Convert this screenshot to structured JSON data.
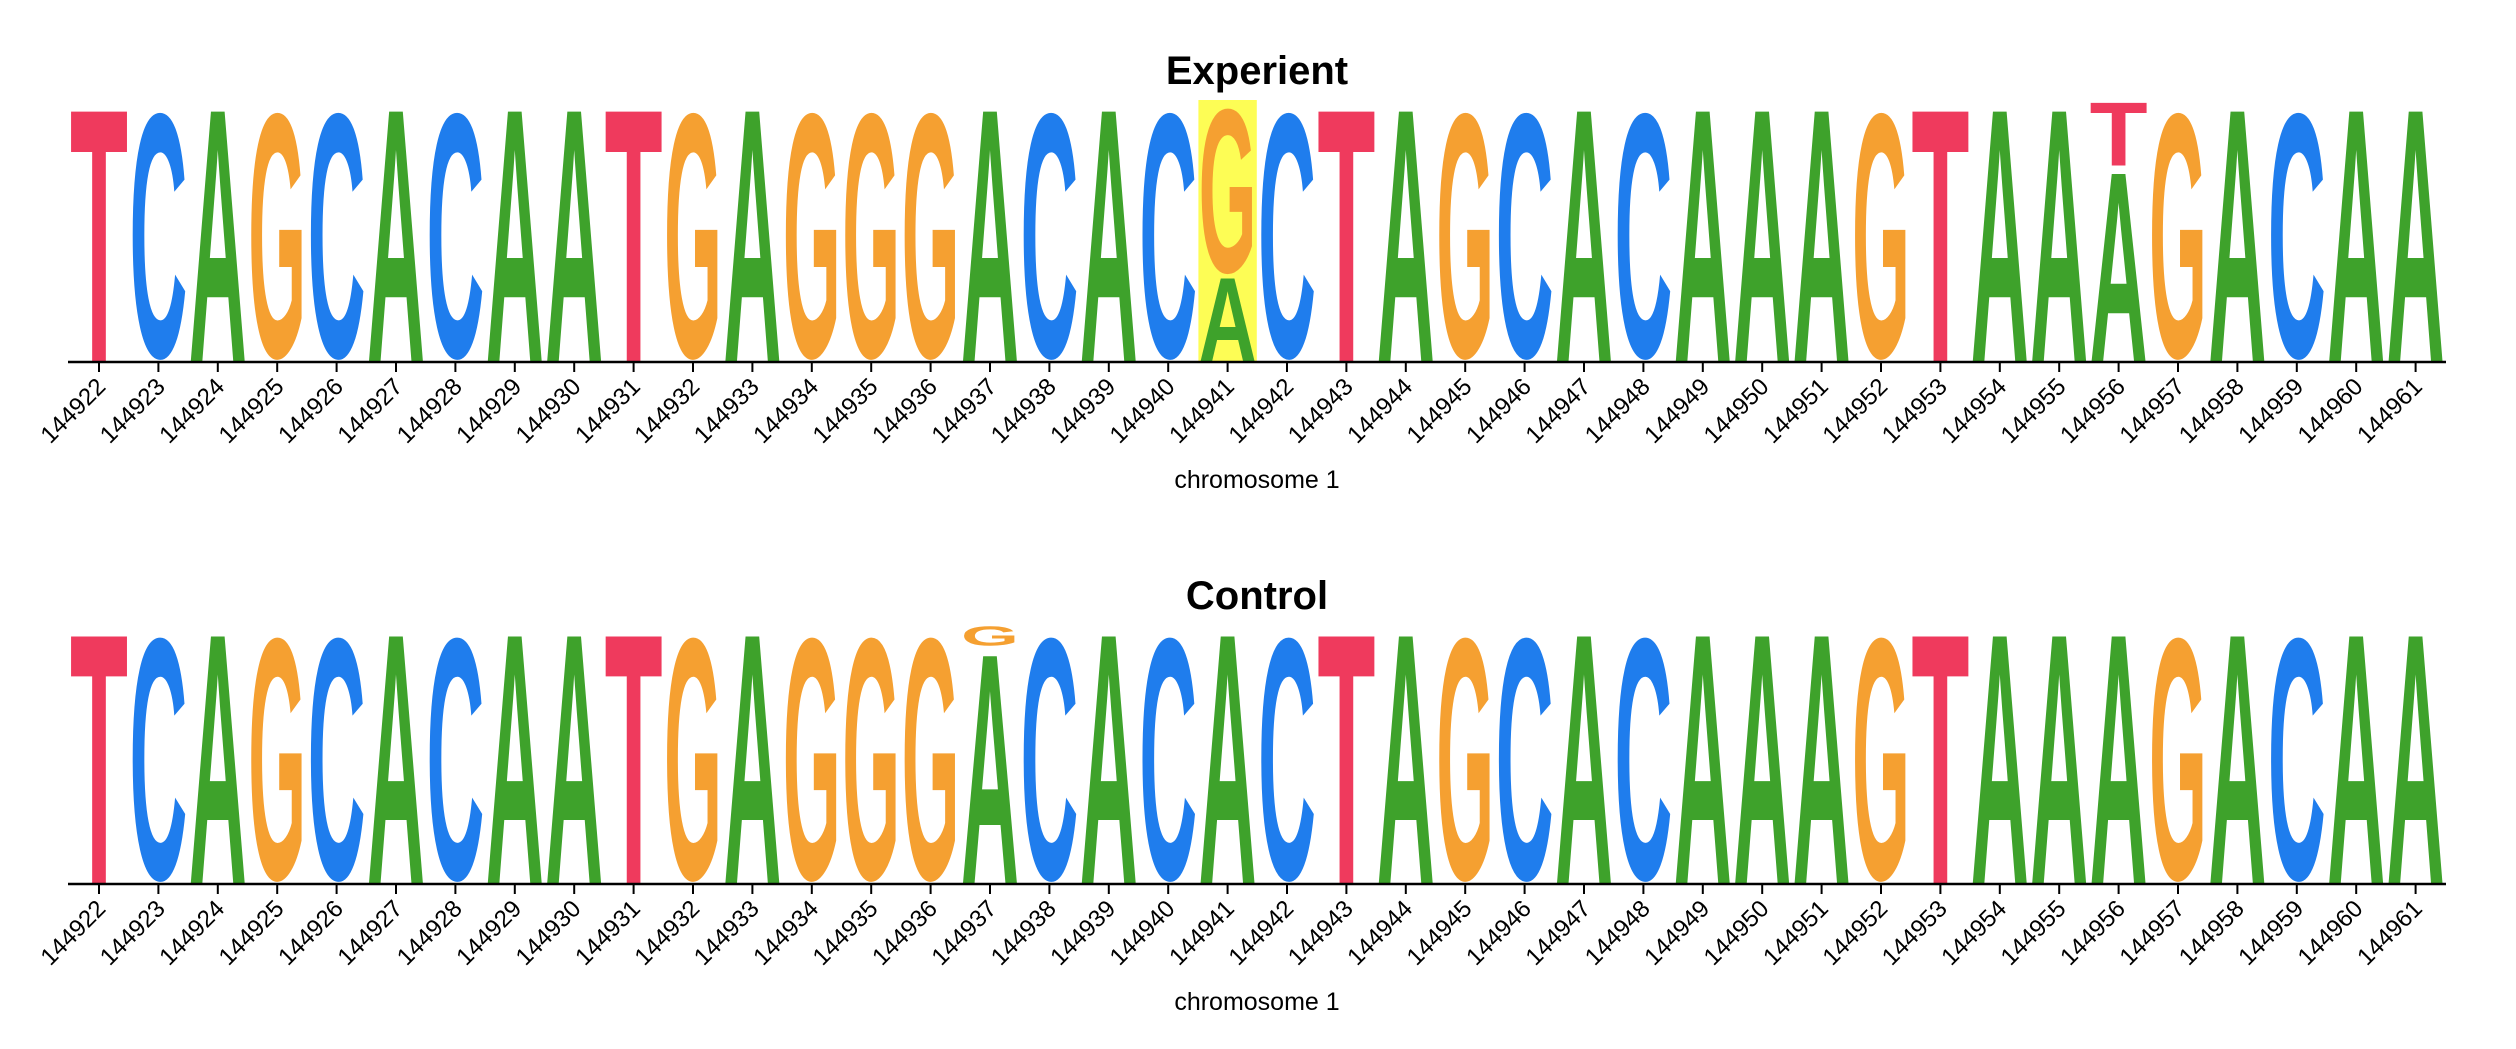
{
  "colors": {
    "A": "#3ea22b",
    "C": "#1f7ded",
    "G": "#f5a031",
    "T": "#ef3a5d",
    "highlight": "#fdfd55"
  },
  "chart_data": [
    {
      "type": "sequence-logo",
      "title": "Experient",
      "xlabel": "chromosome 1",
      "ylabel": "",
      "x": [
        144922,
        144923,
        144924,
        144925,
        144926,
        144927,
        144928,
        144929,
        144930,
        144931,
        144932,
        144933,
        144934,
        144935,
        144936,
        144937,
        144938,
        144939,
        144940,
        144941,
        144942,
        144943,
        144944,
        144945,
        144946,
        144947,
        144948,
        144949,
        144950,
        144951,
        144952,
        144953,
        144954,
        144955,
        144956,
        144957,
        144958,
        144959,
        144960,
        144961
      ],
      "sequence": [
        "T",
        "C",
        "A",
        "G",
        "C",
        "A",
        "C",
        "A",
        "A",
        "T",
        "G",
        "A",
        "G",
        "G",
        "G",
        "A",
        "C",
        "A",
        "C",
        "G",
        "C",
        "T",
        "A",
        "G",
        "C",
        "A",
        "C",
        "A",
        "A",
        "A",
        "G",
        "T",
        "A",
        "A",
        "A",
        "G",
        "A",
        "C",
        "A",
        "A"
      ],
      "stacks": [
        {
          "position": 144941,
          "letters": [
            {
              "base": "A",
              "fraction": 0.33
            },
            {
              "base": "G",
              "fraction": 0.67
            }
          ]
        },
        {
          "position": 144956,
          "letters": [
            {
              "base": "A",
              "fraction": 0.75
            },
            {
              "base": "T",
              "fraction": 0.25
            }
          ]
        }
      ],
      "highlight_positions": [
        144941
      ]
    },
    {
      "type": "sequence-logo",
      "title": "Control",
      "xlabel": "chromosome 1",
      "ylabel": "",
      "x": [
        144922,
        144923,
        144924,
        144925,
        144926,
        144927,
        144928,
        144929,
        144930,
        144931,
        144932,
        144933,
        144934,
        144935,
        144936,
        144937,
        144938,
        144939,
        144940,
        144941,
        144942,
        144943,
        144944,
        144945,
        144946,
        144947,
        144948,
        144949,
        144950,
        144951,
        144952,
        144953,
        144954,
        144955,
        144956,
        144957,
        144958,
        144959,
        144960,
        144961
      ],
      "sequence": [
        "T",
        "C",
        "A",
        "G",
        "C",
        "A",
        "C",
        "A",
        "A",
        "T",
        "G",
        "A",
        "G",
        "G",
        "G",
        "A",
        "C",
        "A",
        "C",
        "A",
        "C",
        "T",
        "A",
        "G",
        "C",
        "A",
        "C",
        "A",
        "A",
        "A",
        "G",
        "T",
        "A",
        "A",
        "A",
        "G",
        "A",
        "C",
        "A",
        "A"
      ],
      "stacks": [
        {
          "position": 144937,
          "letters": [
            {
              "base": "A",
              "fraction": 0.92
            },
            {
              "base": "G",
              "fraction": 0.08
            }
          ]
        }
      ],
      "highlight_positions": []
    }
  ]
}
